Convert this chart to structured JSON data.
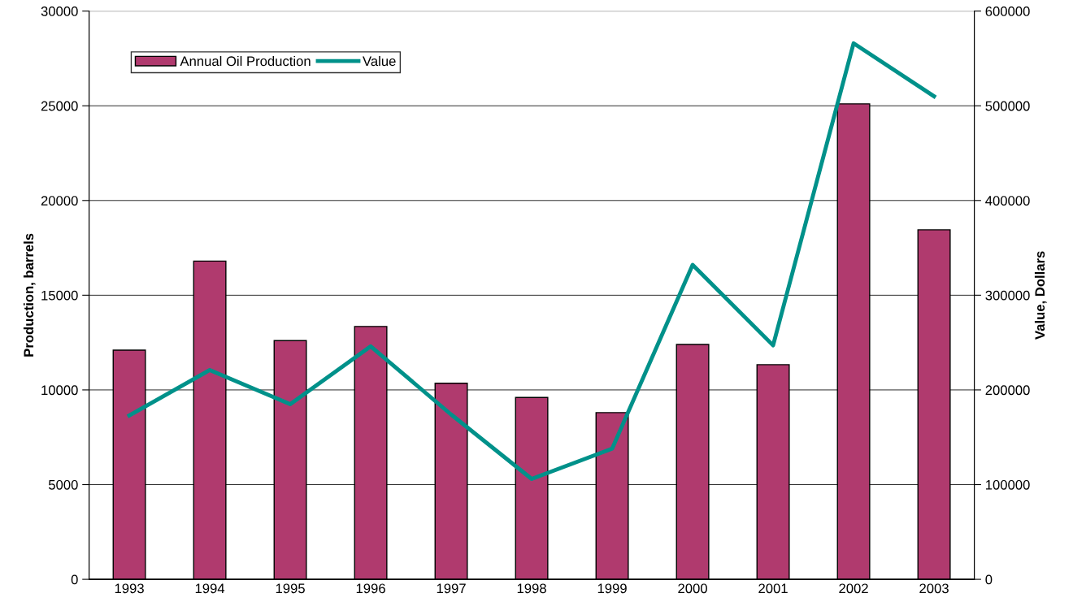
{
  "chart_data": {
    "type": "bar",
    "ylabel": "Production, barrels",
    "y2label": "Value, Dollars",
    "categories": [
      "1993",
      "1994",
      "1995",
      "1996",
      "1997",
      "1998",
      "1999",
      "2000",
      "2001",
      "2002",
      "2003"
    ],
    "series": [
      {
        "name": "Annual Oil Production",
        "color": "#b03a6e",
        "values": [
          12100,
          16800,
          12600,
          13350,
          10350,
          9600,
          8800,
          12400,
          11330,
          25100,
          18450
        ]
      },
      {
        "name": "Value",
        "type": "line",
        "axis": "y2",
        "color": "#00918a",
        "values": [
          173000,
          221000,
          185000,
          246000,
          174000,
          106000,
          138000,
          332000,
          247000,
          566000,
          510000
        ]
      }
    ],
    "ylim": [
      0,
      30000
    ],
    "yticks": [
      0,
      5000,
      10000,
      15000,
      20000,
      25000,
      30000
    ],
    "y2lim": [
      0,
      600000
    ],
    "y2ticks": [
      0,
      100000,
      200000,
      300000,
      400000,
      500000,
      600000
    ],
    "grid": "y",
    "legend": "top left",
    "marker": "none",
    "line_style": "solid"
  }
}
